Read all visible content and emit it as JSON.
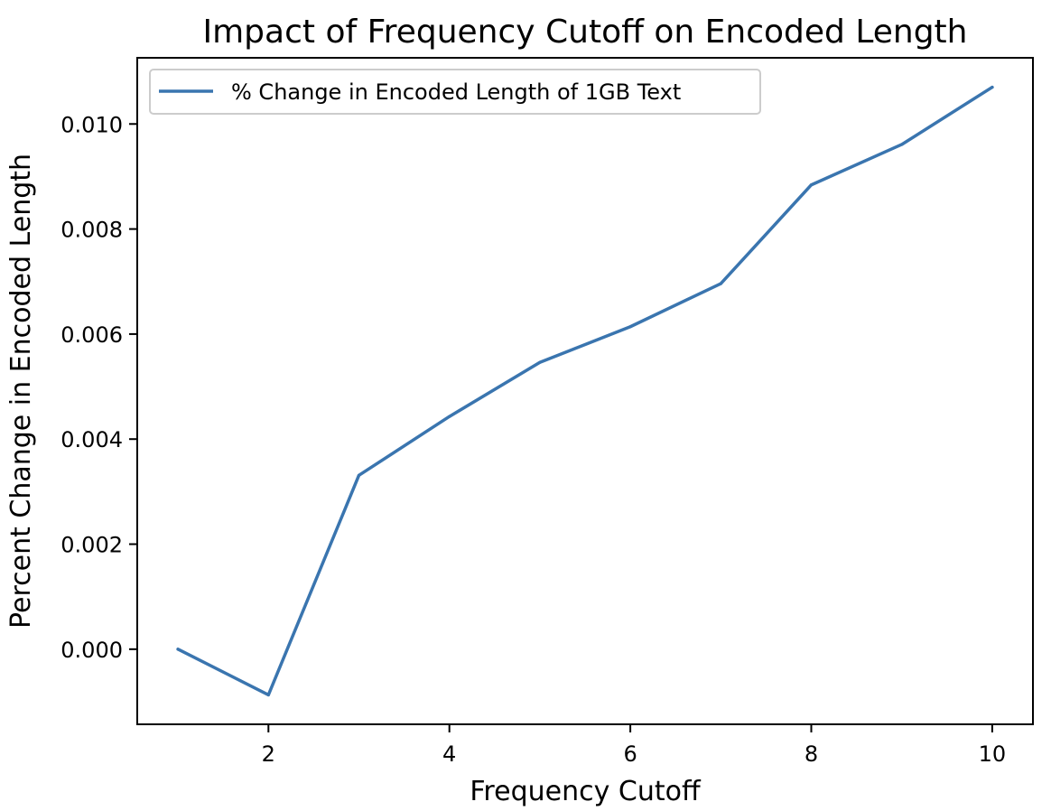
{
  "chart_data": {
    "type": "line",
    "title": "Impact of Frequency Cutoff on Encoded Length",
    "xlabel": "Frequency Cutoff",
    "ylabel": "Percent Change in Encoded Length",
    "x": [
      1,
      2,
      3,
      4,
      5,
      6,
      7,
      8,
      9,
      10
    ],
    "series": [
      {
        "name": "% Change in Encoded Length of 1GB Text",
        "values": [
          0.0,
          -0.00087,
          0.00331,
          0.00443,
          0.00546,
          0.00614,
          0.00696,
          0.00884,
          0.00961,
          0.0107
        ],
        "color": "#3a75af"
      }
    ],
    "xlim": [
      0.55,
      10.45
    ],
    "ylim": [
      -0.00143,
      0.01126
    ],
    "xticks": [
      2,
      4,
      6,
      8,
      10
    ],
    "xtick_labels": [
      "2",
      "4",
      "6",
      "8",
      "10"
    ],
    "yticks": [
      0.0,
      0.002,
      0.004,
      0.006,
      0.008,
      0.01
    ],
    "ytick_labels": [
      "0.000",
      "0.002",
      "0.004",
      "0.006",
      "0.008",
      "0.010"
    ],
    "grid": false,
    "legend_position": "upper-left"
  }
}
